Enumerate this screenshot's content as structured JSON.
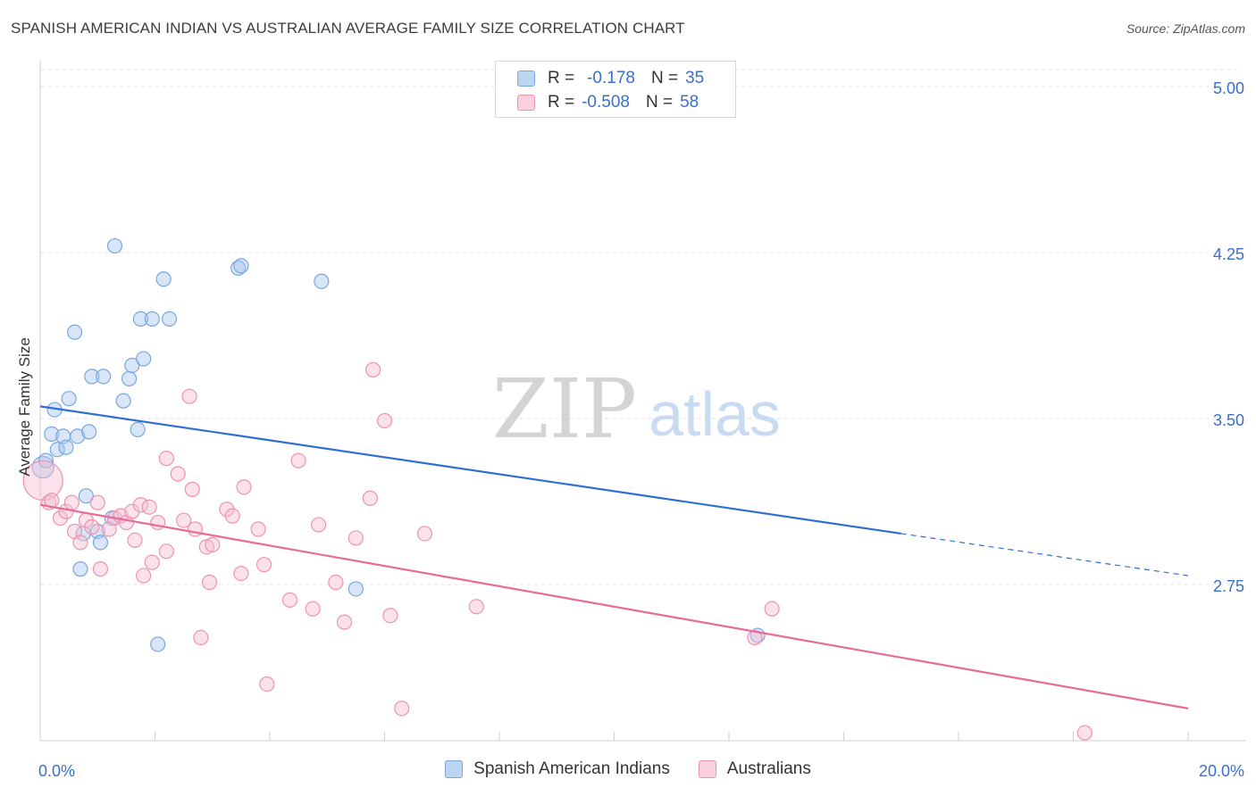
{
  "title": "SPANISH AMERICAN INDIAN VS AUSTRALIAN AVERAGE FAMILY SIZE CORRELATION CHART",
  "source": "Source: ZipAtlas.com",
  "watermark": {
    "zip": "ZIP",
    "atlas": "atlas"
  },
  "legend": {
    "rows": [
      {
        "r_label": "R =",
        "r_value": "-0.178",
        "n_label": "N =",
        "n_value": "35",
        "color": "#a9c8f0",
        "stroke": "#7aa6e0"
      },
      {
        "r_label": "R =",
        "r_value": "-0.508",
        "n_label": "N =",
        "n_value": "58",
        "color": "#f7bfd1",
        "stroke": "#ec93b2"
      }
    ]
  },
  "bottom_legend": [
    {
      "label": "Spanish American Indians",
      "color": "#a9c8f0",
      "stroke": "#7aa6e0"
    },
    {
      "label": "Australians",
      "color": "#f7bfd1",
      "stroke": "#ec93b2"
    }
  ],
  "chart_data": {
    "type": "scatter",
    "title": "SPANISH AMERICAN INDIAN VS AUSTRALIAN AVERAGE FAMILY SIZE CORRELATION CHART",
    "xlabel": "",
    "ylabel": "Average Family Size",
    "xlim": [
      0,
      20
    ],
    "ylim": [
      2.0,
      5.1
    ],
    "x_tick_labels": [
      "0.0%",
      "20.0%"
    ],
    "y_ticks": [
      2.75,
      3.5,
      4.25,
      5.0
    ],
    "y_tick_labels": [
      "2.75",
      "3.50",
      "4.25",
      "5.00"
    ],
    "grid": true,
    "series": [
      {
        "name": "Spanish American Indians",
        "color": "#7aa6e0",
        "fill": "#a9c8f0",
        "line_color": "#2f6fd4",
        "trend": {
          "x0": 0.0,
          "y0": 3.555,
          "x1": 15.0,
          "y1": 2.98,
          "x_dash_end": 20.0,
          "y_dash_end": 2.79
        },
        "points": [
          [
            0.05,
            3.28
          ],
          [
            0.1,
            3.31
          ],
          [
            0.2,
            3.43
          ],
          [
            0.25,
            3.54
          ],
          [
            0.3,
            3.36
          ],
          [
            0.4,
            3.42
          ],
          [
            0.45,
            3.37
          ],
          [
            0.5,
            3.59
          ],
          [
            0.65,
            3.42
          ],
          [
            0.85,
            3.44
          ],
          [
            0.6,
            3.89
          ],
          [
            0.7,
            2.82
          ],
          [
            0.75,
            2.98
          ],
          [
            0.8,
            3.15
          ],
          [
            0.9,
            3.69
          ],
          [
            1.0,
            2.99
          ],
          [
            1.05,
            2.94
          ],
          [
            1.1,
            3.69
          ],
          [
            1.25,
            3.05
          ],
          [
            1.3,
            4.28
          ],
          [
            1.45,
            3.58
          ],
          [
            1.55,
            3.68
          ],
          [
            1.6,
            3.74
          ],
          [
            1.7,
            3.45
          ],
          [
            1.8,
            3.77
          ],
          [
            1.75,
            3.95
          ],
          [
            1.95,
            3.95
          ],
          [
            2.15,
            4.13
          ],
          [
            2.25,
            3.95
          ],
          [
            2.05,
            2.48
          ],
          [
            3.45,
            4.18
          ],
          [
            3.5,
            4.19
          ],
          [
            4.9,
            4.12
          ],
          [
            5.5,
            2.73
          ],
          [
            12.5,
            2.52
          ]
        ]
      },
      {
        "name": "Australians",
        "color": "#ec93b2",
        "fill": "#f7bfd1",
        "line_color": "#e86a98",
        "trend": {
          "x0": 0.0,
          "y0": 3.11,
          "x1": 20.0,
          "y1": 2.19
        },
        "points": [
          [
            0.05,
            3.22
          ],
          [
            0.15,
            3.12
          ],
          [
            0.2,
            3.13
          ],
          [
            0.35,
            3.05
          ],
          [
            0.45,
            3.08
          ],
          [
            0.55,
            3.12
          ],
          [
            0.6,
            2.99
          ],
          [
            0.7,
            2.94
          ],
          [
            0.8,
            3.04
          ],
          [
            0.9,
            3.01
          ],
          [
            1.0,
            3.12
          ],
          [
            1.05,
            2.82
          ],
          [
            1.2,
            3.0
          ],
          [
            1.3,
            3.05
          ],
          [
            1.4,
            3.06
          ],
          [
            1.5,
            3.03
          ],
          [
            1.6,
            3.08
          ],
          [
            1.65,
            2.95
          ],
          [
            1.75,
            3.11
          ],
          [
            1.8,
            2.79
          ],
          [
            1.9,
            3.1
          ],
          [
            1.95,
            2.85
          ],
          [
            2.05,
            3.03
          ],
          [
            2.2,
            2.9
          ],
          [
            2.2,
            3.32
          ],
          [
            2.4,
            3.25
          ],
          [
            2.5,
            3.04
          ],
          [
            2.6,
            3.6
          ],
          [
            2.65,
            3.18
          ],
          [
            2.7,
            3.0
          ],
          [
            2.8,
            2.51
          ],
          [
            2.9,
            2.92
          ],
          [
            2.95,
            2.76
          ],
          [
            3.0,
            2.93
          ],
          [
            3.25,
            3.09
          ],
          [
            3.35,
            3.06
          ],
          [
            3.5,
            2.8
          ],
          [
            3.55,
            3.19
          ],
          [
            3.8,
            3.0
          ],
          [
            3.9,
            2.84
          ],
          [
            3.95,
            2.3
          ],
          [
            4.35,
            2.68
          ],
          [
            4.5,
            3.31
          ],
          [
            4.75,
            2.64
          ],
          [
            4.85,
            3.02
          ],
          [
            5.15,
            2.76
          ],
          [
            5.3,
            2.58
          ],
          [
            5.5,
            2.96
          ],
          [
            5.75,
            3.14
          ],
          [
            5.8,
            3.72
          ],
          [
            6.0,
            3.49
          ],
          [
            6.1,
            2.61
          ],
          [
            6.3,
            2.19
          ],
          [
            6.7,
            2.98
          ],
          [
            7.6,
            2.65
          ],
          [
            12.45,
            2.51
          ],
          [
            12.75,
            2.64
          ],
          [
            18.2,
            2.08
          ]
        ]
      }
    ]
  }
}
